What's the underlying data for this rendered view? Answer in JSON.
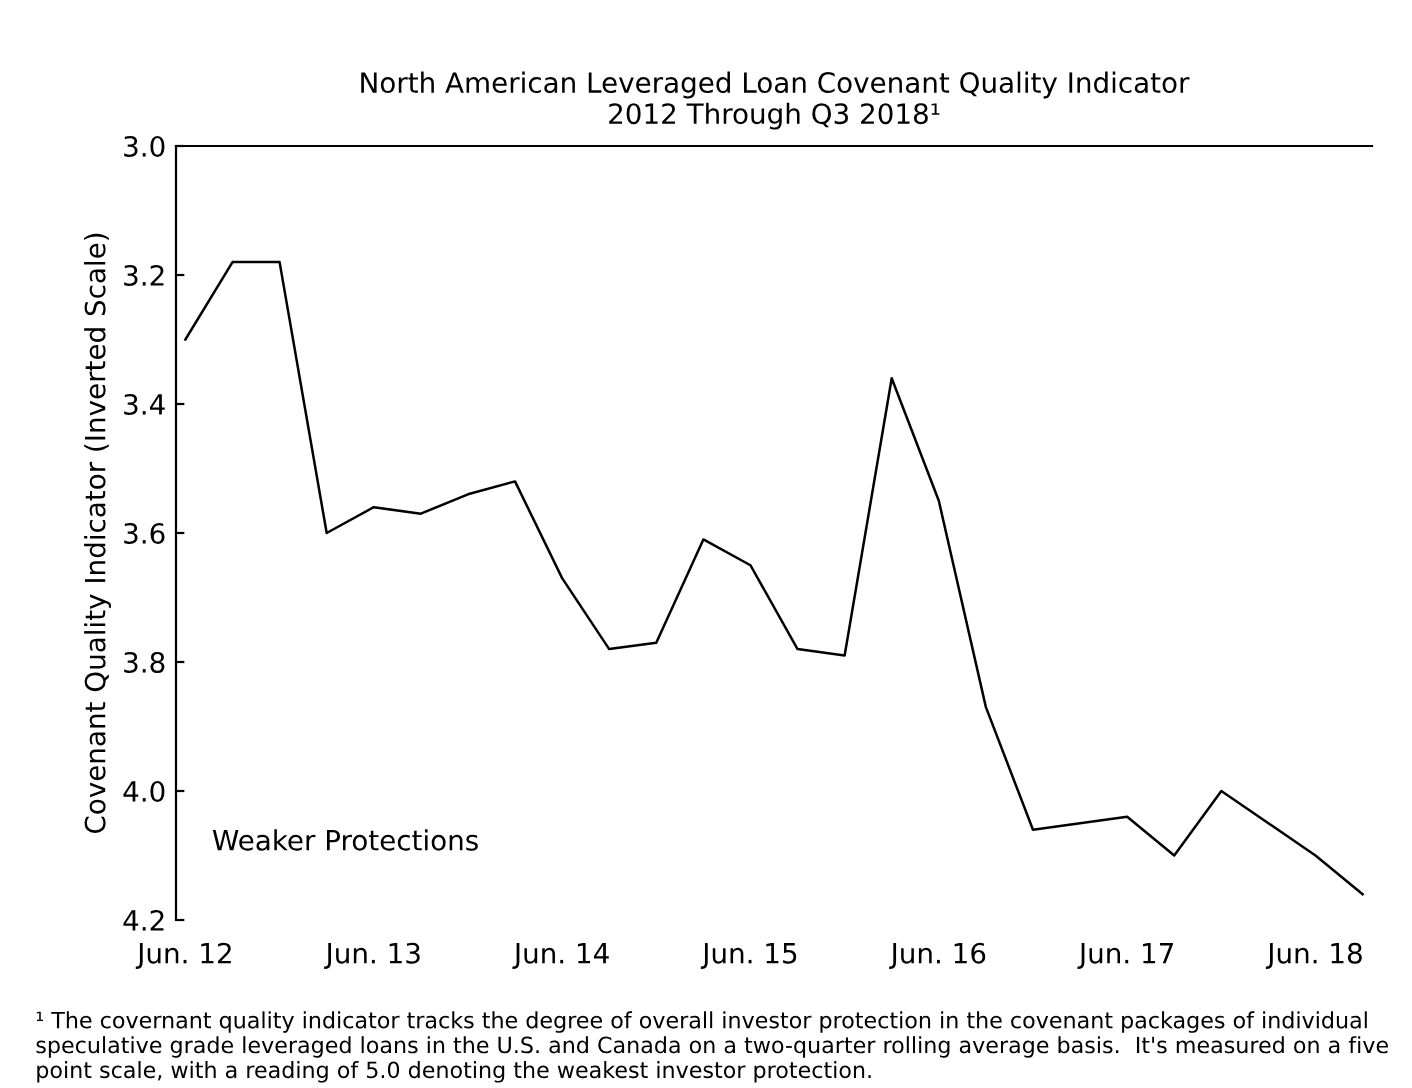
{
  "chart_data": {
    "type": "line",
    "title": "North American Leveraged Loan Covenant Quality Indicator\n2012 Through Q3 2018¹",
    "ylabel": "Covenant Quality Indicator (Inverted Scale)",
    "categories": [
      "Jun. 12",
      null,
      null,
      null,
      "Jun. 13",
      null,
      null,
      null,
      "Jun. 14",
      null,
      null,
      null,
      "Jun. 15",
      null,
      null,
      null,
      "Jun. 16",
      null,
      null,
      null,
      "Jun. 17",
      null,
      null,
      null,
      "Jun. 18",
      null
    ],
    "series": [
      {
        "color": "#000000",
        "values": [
          3.3,
          3.18,
          3.18,
          3.6,
          3.56,
          3.57,
          3.54,
          3.52,
          3.67,
          3.78,
          3.77,
          3.61,
          3.65,
          3.78,
          3.79,
          3.36,
          3.55,
          3.87,
          4.06,
          4.05,
          4.04,
          4.1,
          4.0,
          4.05,
          4.1,
          4.16
        ]
      }
    ],
    "ylim": [
      4.2,
      3.0
    ],
    "yticks": [
      {
        "value": 3.0,
        "label": "3.0"
      },
      3.2,
      3.4,
      3.6,
      3.8,
      {
        "value": 4.0,
        "label": "4.0"
      },
      4.2
    ],
    "grid": false,
    "legend": false,
    "marker": "none",
    "line_style": "solid",
    "annotations": [
      "Weaker Protections",
      "¹ The covernant quality indicator tracks the degree of overall investor protection in the covenant packages of individual speculative grade leveraged loans in the U.S. and Canada on a two-quarter rolling average basis.  It's measured on a five point scale, with a reading of 5.0 denoting the weakest investor protection."
    ]
  }
}
